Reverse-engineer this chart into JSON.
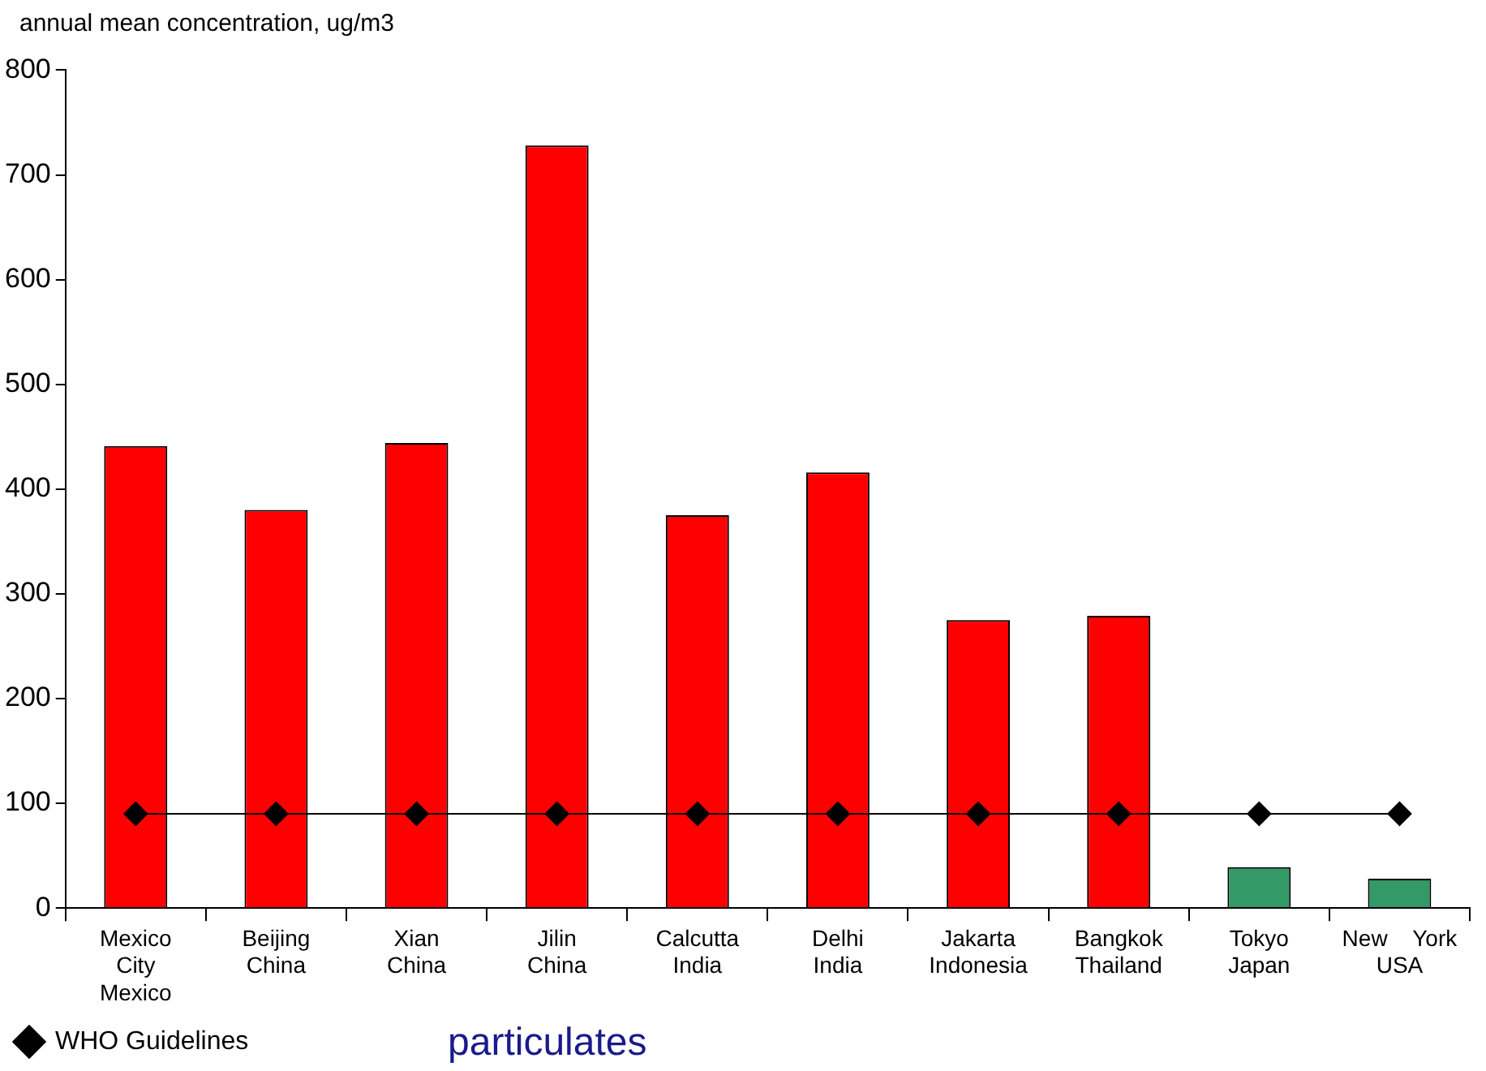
{
  "chart_data": {
    "type": "bar",
    "ylabel": "annual mean concentration, ug/m3",
    "categories": [
      "Mexico\nCity\nMexico",
      "Beijing\nChina",
      "Xian\nChina",
      "Jilin\nChina",
      "Calcutta\nIndia",
      "Delhi\nIndia",
      "Jakarta\nIndonesia",
      "Bangkok\nThailand",
      "Tokyo\nJapan",
      "New    York\nUSA"
    ],
    "series": [
      {
        "colors": [
          "#ff0000",
          "#ff0000",
          "#ff0000",
          "#ff0000",
          "#ff0000",
          "#ff0000",
          "#ff0000",
          "#ff0000",
          "#339966",
          "#339966"
        ],
        "values": [
          441,
          380,
          444,
          728,
          375,
          416,
          275,
          279,
          39,
          28
        ]
      },
      {
        "type": "line",
        "name": "WHO Guidelines",
        "color": "#000000",
        "marker": "diamond",
        "values": [
          90,
          90,
          90,
          90,
          90,
          90,
          90,
          90,
          90,
          90
        ]
      }
    ],
    "ylim": [
      0,
      800
    ],
    "yticks": [
      0,
      100,
      200,
      300,
      400,
      500,
      600,
      700,
      800
    ],
    "grid": false,
    "legend": "bottom left",
    "annotations": [
      "particulates"
    ]
  }
}
